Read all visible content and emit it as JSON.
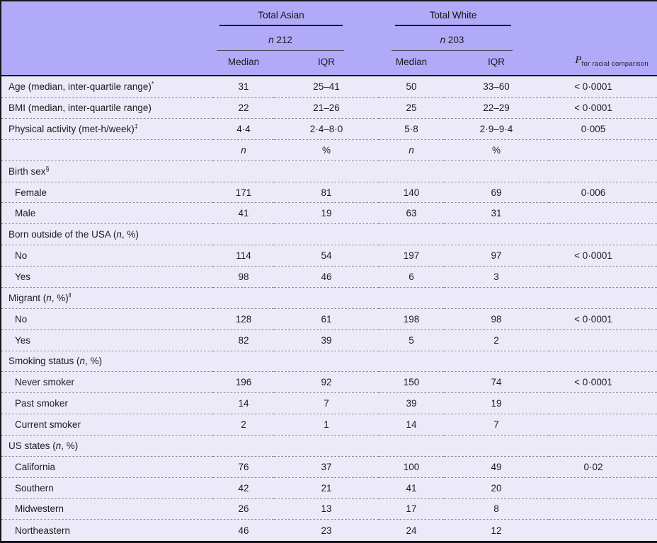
{
  "meta": {
    "npct_open": " (",
    "n_symbol": "n",
    "npct_close": ", %)"
  },
  "colors": {
    "header_bg": "#b0aaf8",
    "body_bg": "#eceaf8",
    "border": "#151515",
    "dash": "#8d8d92"
  },
  "header": {
    "groups": [
      {
        "title": "Total Asian",
        "n_label": "n",
        "n_value": "212"
      },
      {
        "title": "Total White",
        "n_label": "n",
        "n_value": "203"
      }
    ],
    "stat_cols": [
      "Median",
      "IQR",
      "Median",
      "IQR"
    ],
    "p_label": "P",
    "p_subscript": "for racial comparison"
  },
  "rows": [
    {
      "kind": "data",
      "label": "Age (median, inter-quartile range)",
      "sup": "*",
      "values": [
        "31",
        "25–41",
        "50",
        "33–60"
      ],
      "p": "< 0·0001"
    },
    {
      "kind": "data",
      "label": "BMI (median, inter-quartile range)",
      "values": [
        "22",
        "21–26",
        "25",
        "22–29"
      ],
      "p": "< 0·0001"
    },
    {
      "kind": "data",
      "label": "Physical activity (met-h/week)",
      "sup": "‡",
      "values": [
        "4·4",
        "2·4–8·0",
        "5·8",
        "2·9–9·4"
      ],
      "p": "0·005"
    },
    {
      "kind": "subheader",
      "label": "",
      "values": [
        "n",
        "%",
        "n",
        "%"
      ],
      "p": ""
    },
    {
      "kind": "group",
      "label": "Birth sex",
      "sup": "§"
    },
    {
      "kind": "data",
      "indent": true,
      "label": "Female",
      "values": [
        "171",
        "81",
        "140",
        "69"
      ],
      "p": "0·006"
    },
    {
      "kind": "data",
      "indent": true,
      "label": "Male",
      "values": [
        "41",
        "19",
        "63",
        "31"
      ],
      "p": ""
    },
    {
      "kind": "group",
      "label": "Born outside of the USA",
      "npct": true
    },
    {
      "kind": "data",
      "indent": true,
      "label": "No",
      "values": [
        "114",
        "54",
        "197",
        "97"
      ],
      "p": "< 0·0001"
    },
    {
      "kind": "data",
      "indent": true,
      "label": "Yes",
      "values": [
        "98",
        "46",
        "6",
        "3"
      ],
      "p": ""
    },
    {
      "kind": "group",
      "label": "Migrant",
      "npct": true,
      "sup": "‖"
    },
    {
      "kind": "data",
      "indent": true,
      "label": "No",
      "values": [
        "128",
        "61",
        "198",
        "98"
      ],
      "p": "< 0·0001"
    },
    {
      "kind": "data",
      "indent": true,
      "label": "Yes",
      "values": [
        "82",
        "39",
        "5",
        "2"
      ],
      "p": ""
    },
    {
      "kind": "group",
      "label": "Smoking status",
      "npct": true
    },
    {
      "kind": "data",
      "indent": true,
      "label": "Never smoker",
      "values": [
        "196",
        "92",
        "150",
        "74"
      ],
      "p": "< 0·0001"
    },
    {
      "kind": "data",
      "indent": true,
      "label": "Past smoker",
      "values": [
        "14",
        "7",
        "39",
        "19"
      ],
      "p": ""
    },
    {
      "kind": "data",
      "indent": true,
      "label": "Current smoker",
      "values": [
        "2",
        "1",
        "14",
        "7"
      ],
      "p": ""
    },
    {
      "kind": "group",
      "label": "US states",
      "npct": true
    },
    {
      "kind": "data",
      "indent": true,
      "label": "California",
      "values": [
        "76",
        "37",
        "100",
        "49"
      ],
      "p": "0·02"
    },
    {
      "kind": "data",
      "indent": true,
      "label": "Southern",
      "values": [
        "42",
        "21",
        "41",
        "20"
      ],
      "p": ""
    },
    {
      "kind": "data",
      "indent": true,
      "label": "Midwestern",
      "values": [
        "26",
        "13",
        "17",
        "8"
      ],
      "p": ""
    },
    {
      "kind": "data",
      "indent": true,
      "label": "Northeastern",
      "values": [
        "46",
        "23",
        "24",
        "12"
      ],
      "p": ""
    }
  ]
}
